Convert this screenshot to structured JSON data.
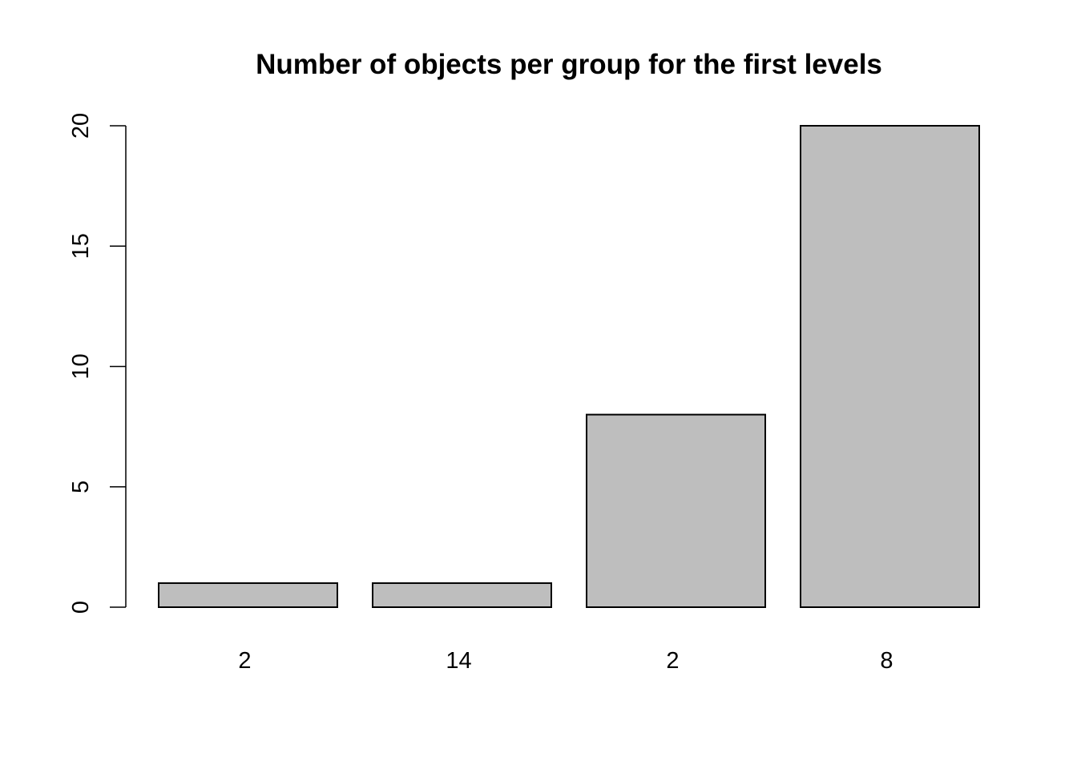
{
  "chart_data": {
    "type": "bar",
    "title": "Number of objects per group for the first levels",
    "xlabel": "",
    "ylabel": "",
    "categories": [
      "2",
      "14",
      "2",
      "8"
    ],
    "values": [
      1,
      1,
      8,
      20
    ],
    "ylim": [
      0,
      20
    ],
    "yticks": [
      "0",
      "5",
      "10",
      "15",
      "20"
    ],
    "bar_color": "#bebebe",
    "border_color": "#000000",
    "grid": false,
    "legend": "none"
  }
}
